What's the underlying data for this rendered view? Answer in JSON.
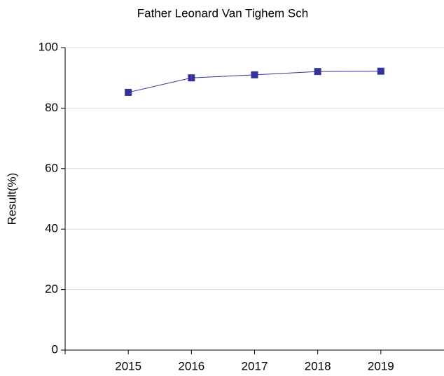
{
  "chart_data": {
    "type": "line",
    "title": "Father Leonard Van Tighem Sch",
    "y_label": "Result(%)",
    "x": [
      2015,
      2016,
      2017,
      2018,
      2019
    ],
    "series": [
      {
        "name": "Result",
        "color": "#333399",
        "values": [
          85.2,
          90.0,
          91.0,
          92.1,
          92.2
        ]
      }
    ],
    "xlim": [
      2014,
      2020
    ],
    "xticks": [
      2015,
      2016,
      2017,
      2018,
      2019
    ],
    "ylim": [
      0,
      100
    ],
    "yticks": [
      0,
      20,
      40,
      60,
      80,
      100
    ],
    "grid": true
  }
}
